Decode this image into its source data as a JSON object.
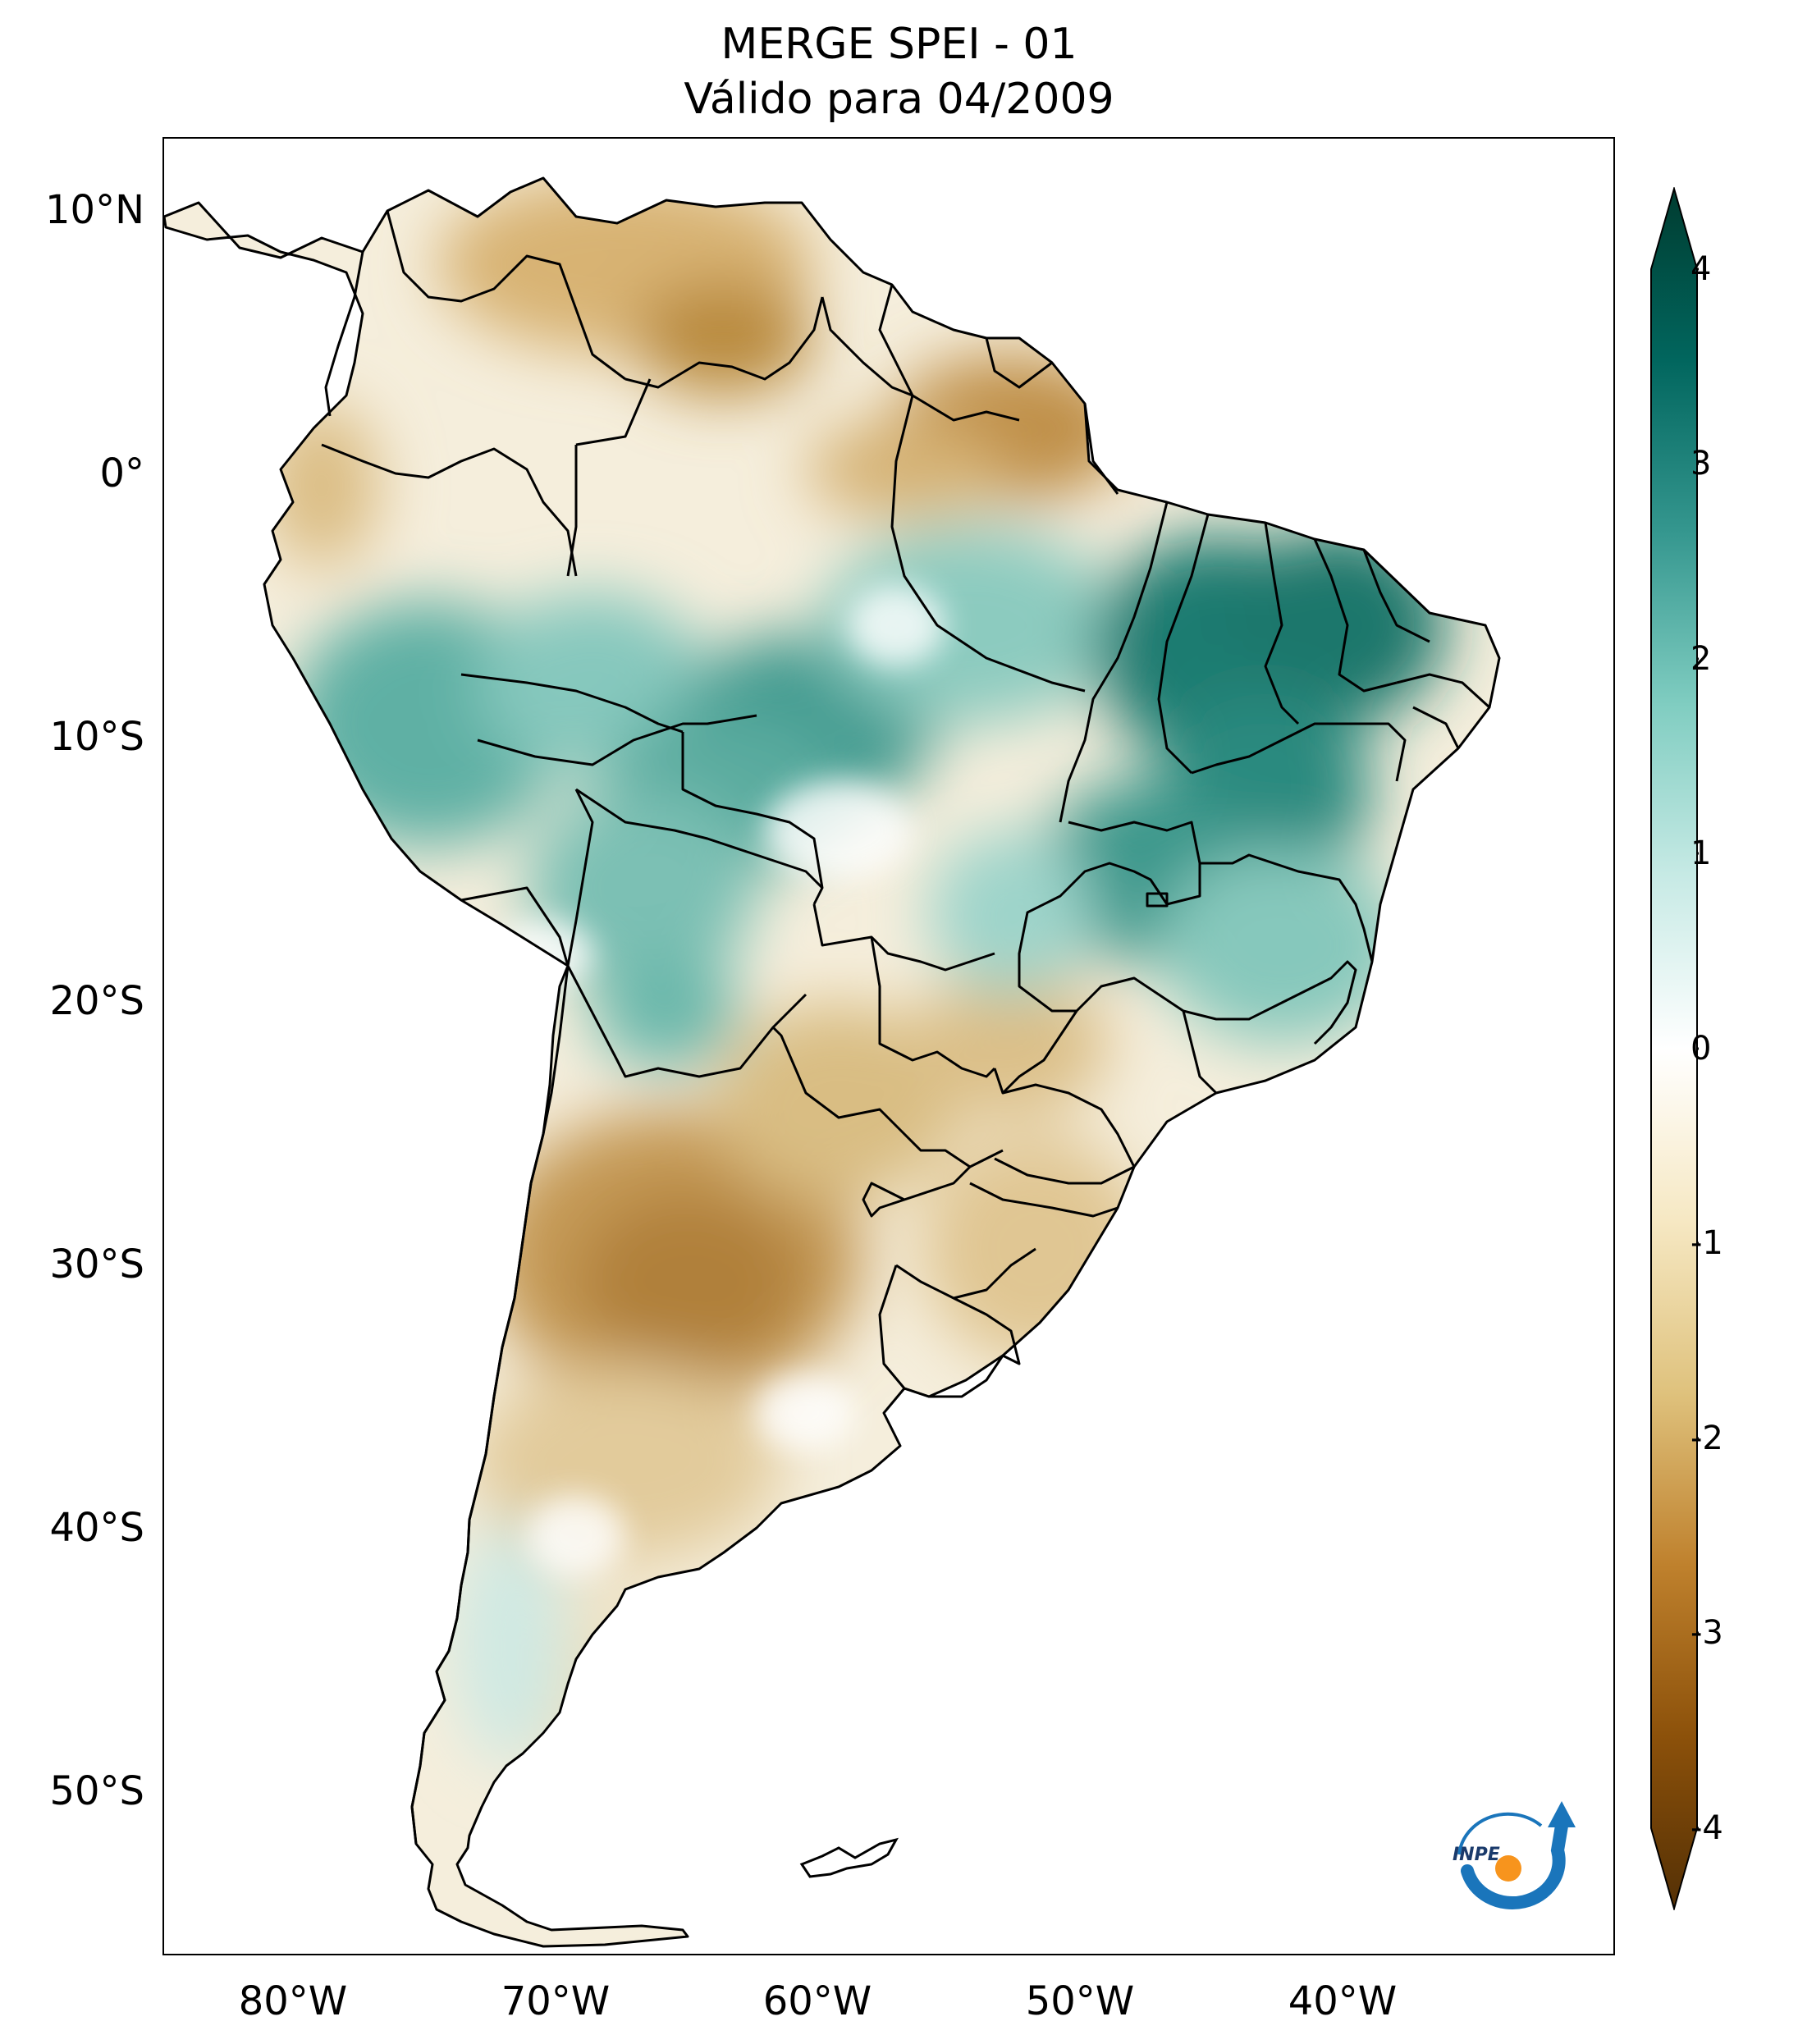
{
  "title": {
    "line1": "MERGE   SPEI - 01",
    "line2": "Válido para 04/2009"
  },
  "axes": {
    "lat_labels": [
      "10°N",
      "0°",
      "10°S",
      "20°S",
      "30°S",
      "40°S",
      "50°S"
    ],
    "lon_labels": [
      "80°W",
      "70°W",
      "60°W",
      "50°W",
      "40°W"
    ]
  },
  "colorbar": {
    "ticks": [
      "4",
      "3",
      "2",
      "1",
      "0",
      "-1",
      "-2",
      "-3",
      "-4"
    ],
    "range": [
      -4,
      4
    ],
    "colors": {
      "dry_extreme": "#543005",
      "dry_strong": "#8c510a",
      "dry_moderate": "#bf812d",
      "dry_mild": "#dfc27d",
      "dry_slight": "#f6e8c3",
      "neutral": "#ffffff",
      "wet_slight": "#c7eae5",
      "wet_mild": "#80cdc1",
      "wet_moderate": "#35978f",
      "wet_strong": "#01665e",
      "wet_extreme": "#003c30"
    }
  },
  "logo": {
    "text": "INPE",
    "icon": "inpe-logo-icon",
    "colors": {
      "arc": "#1a75bb",
      "dot": "#f7941d"
    }
  }
}
